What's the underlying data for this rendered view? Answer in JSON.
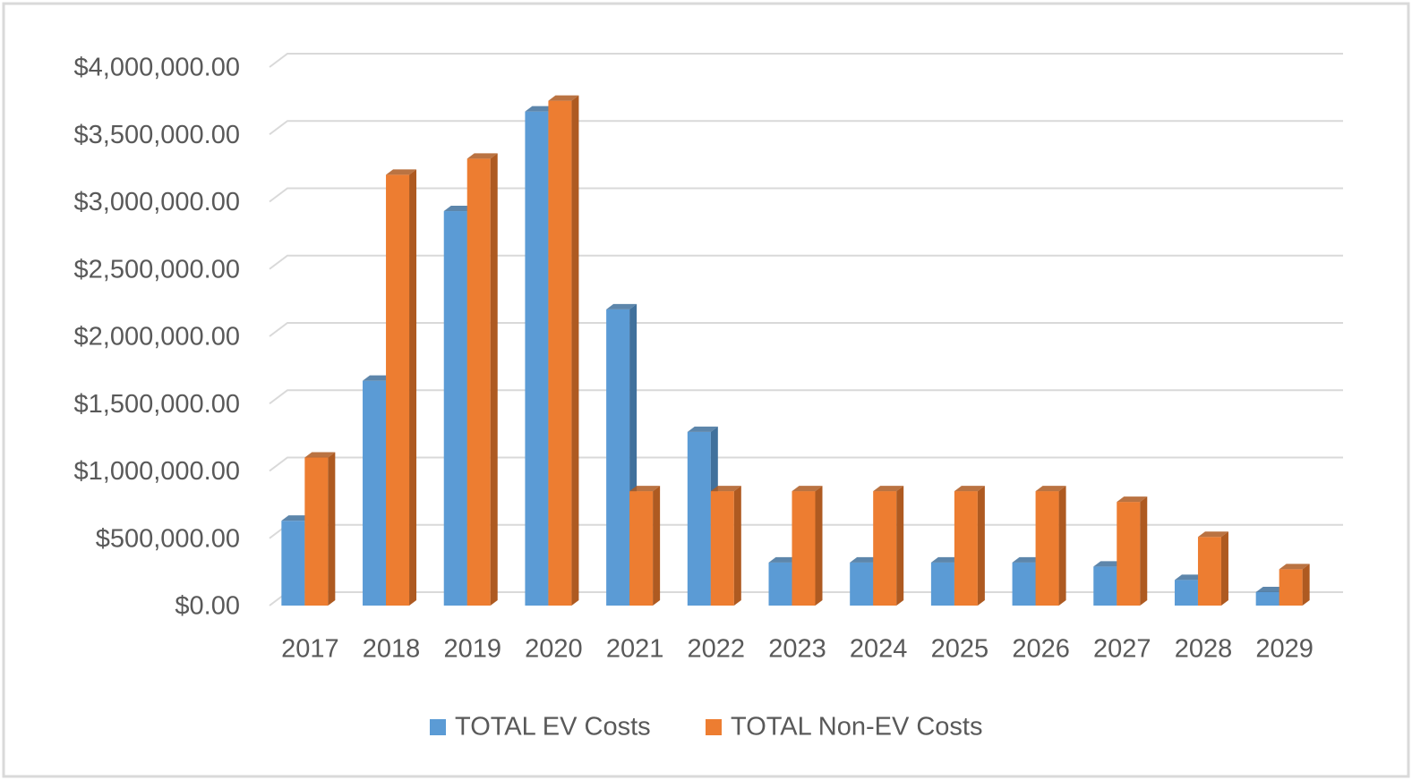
{
  "chart_data": {
    "type": "bar3d",
    "categories": [
      "2017",
      "2018",
      "2019",
      "2020",
      "2021",
      "2022",
      "2023",
      "2024",
      "2025",
      "2026",
      "2027",
      "2028",
      "2029"
    ],
    "series": [
      {
        "name": "TOTAL EV Costs",
        "color": "#5b9bd5",
        "side": "#41719c",
        "values": [
          630000,
          1670000,
          2930000,
          3670000,
          2200000,
          1290000,
          320000,
          320000,
          320000,
          320000,
          290000,
          190000,
          100000
        ]
      },
      {
        "name": "TOTAL Non-EV Costs",
        "color": "#ed7d31",
        "side": "#ae5a21",
        "values": [
          1100000,
          3200000,
          3320000,
          3750000,
          850000,
          850000,
          850000,
          850000,
          850000,
          850000,
          770000,
          510000,
          270000
        ]
      }
    ],
    "ylim": [
      0,
      4000000
    ],
    "yticks": [
      {
        "value": 0,
        "label": "$0.00"
      },
      {
        "value": 500000,
        "label": "$500,000.00"
      },
      {
        "value": 1000000,
        "label": "$1,000,000.00"
      },
      {
        "value": 1500000,
        "label": "$1,500,000.00"
      },
      {
        "value": 2000000,
        "label": "$2,000,000.00"
      },
      {
        "value": 2500000,
        "label": "$2,500,000.00"
      },
      {
        "value": 3000000,
        "label": "$3,000,000.00"
      },
      {
        "value": 3500000,
        "label": "$3,500,000.00"
      },
      {
        "value": 4000000,
        "label": "$4,000,000.00"
      }
    ],
    "grid": true,
    "legend": "bottom"
  }
}
